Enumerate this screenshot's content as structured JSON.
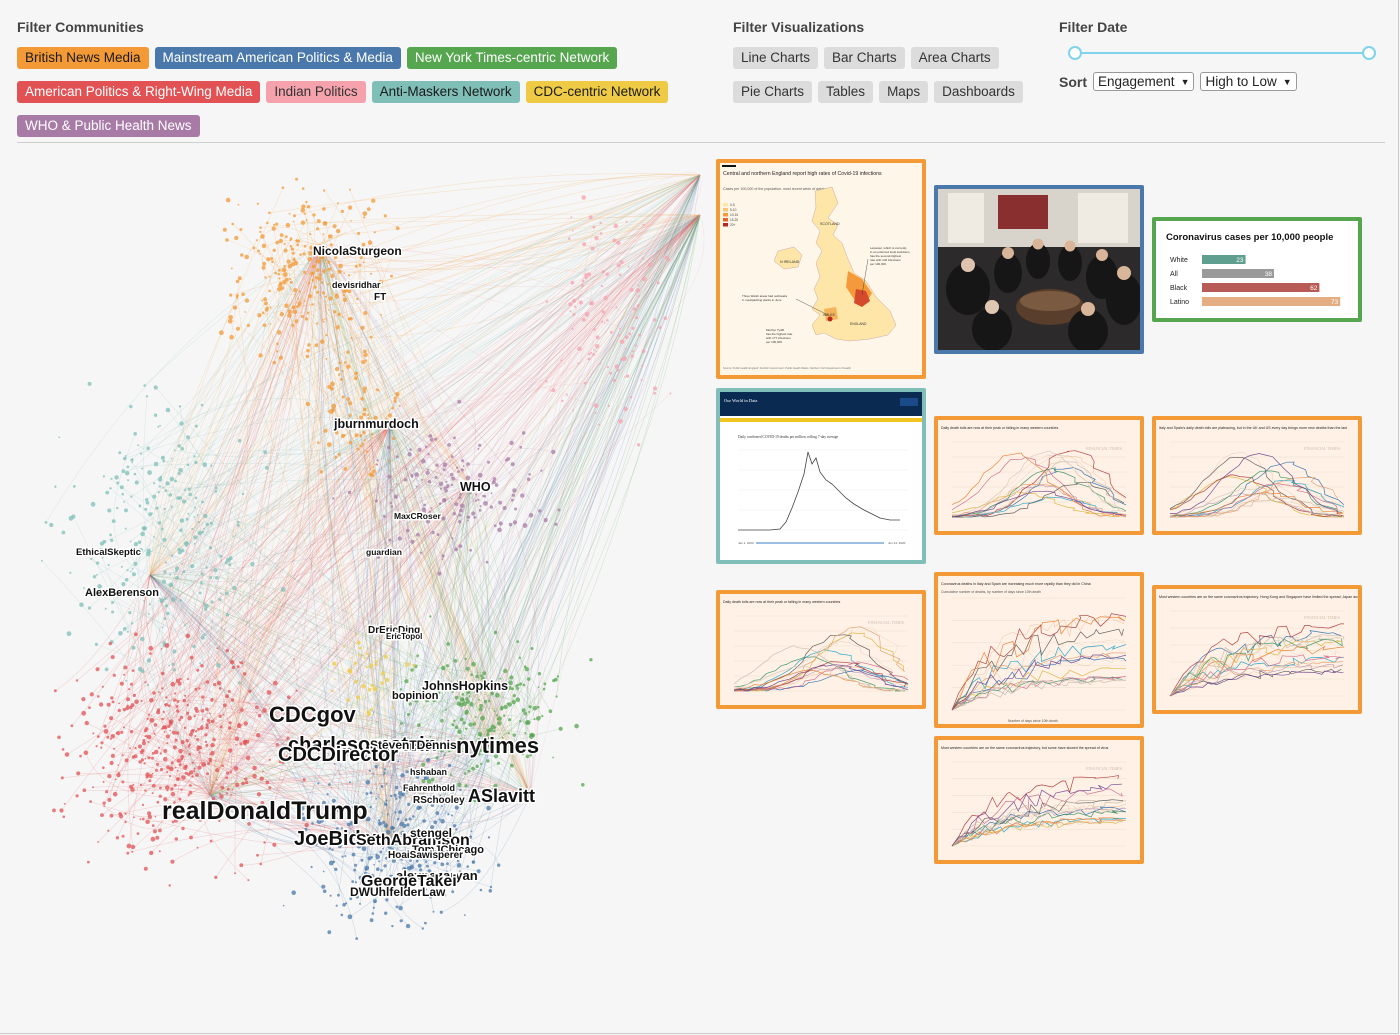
{
  "filters": {
    "communities_title": "Filter Communities",
    "communities": [
      {
        "label": "British News Media",
        "bg": "#f39a36",
        "fg": "#1a1a1a"
      },
      {
        "label": "Mainstream American Politics & Media",
        "bg": "#4a78aa",
        "fg": "#ffffff"
      },
      {
        "label": "New York Times-centric Network",
        "bg": "#56a650",
        "fg": "#ffffff"
      },
      {
        "label": "American Politics & Right-Wing Media",
        "bg": "#e25254",
        "fg": "#ffffff"
      },
      {
        "label": "Indian Politics",
        "bg": "#f5a2ad",
        "fg": "#333333"
      },
      {
        "label": "Anti-Maskers Network",
        "bg": "#7fbfb8",
        "fg": "#1a1a1a"
      },
      {
        "label": "CDC-centric Network",
        "bg": "#efcb45",
        "fg": "#1a1a1a"
      },
      {
        "label": "WHO & Public Health News",
        "bg": "#a87ba7",
        "fg": "#ffffff"
      }
    ],
    "visualizations_title": "Filter Visualizations",
    "visualizations": [
      "Line Charts",
      "Bar Charts",
      "Area Charts",
      "Pie Charts",
      "Tables",
      "Maps",
      "Dashboards"
    ],
    "date_title": "Filter Date",
    "sort_label": "Sort",
    "sort_by": "Engagement",
    "sort_order": "High to Low"
  },
  "network_labels": [
    {
      "text": "NicolaSturgeon"
    },
    {
      "text": "devisridhar"
    },
    {
      "text": "FT"
    },
    {
      "text": "jburnmurdoch"
    },
    {
      "text": "WHO"
    },
    {
      "text": "MaxCRoser"
    },
    {
      "text": "guardian"
    },
    {
      "text": "EthicalSkeptic"
    },
    {
      "text": "AlexBerenson"
    },
    {
      "text": "DrEricDing"
    },
    {
      "text": "EricTopol"
    },
    {
      "text": "JohnsHopkins"
    },
    {
      "text": "bopinion"
    },
    {
      "text": "CDCgov"
    },
    {
      "text": "charlesornstein"
    },
    {
      "text": "StevenTDennis"
    },
    {
      "text": "nytimes"
    },
    {
      "text": "CDCDirector"
    },
    {
      "text": "hshaban"
    },
    {
      "text": "Fahrenthold"
    },
    {
      "text": "RSchooley"
    },
    {
      "text": "ASlavitt"
    },
    {
      "text": "realDonaldTrump"
    },
    {
      "text": "JoeBiden"
    },
    {
      "text": "SethAbramson"
    },
    {
      "text": "stengel"
    },
    {
      "text": "TomJChicago"
    },
    {
      "text": "HoaiSawisperer"
    },
    {
      "text": "alexnazaryan"
    },
    {
      "text": "GeorgeTakei"
    },
    {
      "text": "DWUhlfelderLaw"
    }
  ],
  "thumbnails": {
    "uk_map": {
      "title": "Central and northern England report high rates of Covid-19 infections",
      "subtitle": "Cases per 100,000 of the population, most recent week of data*",
      "legend": [
        "0-5",
        "5-10",
        "10-15",
        "15-20",
        "20+"
      ],
      "places": [
        "SCOTLAND",
        "N IRELAND",
        "WALES",
        "ENGLAND"
      ],
      "note1": "Leicester, which is currently in an enforced local lockdown, has the second-highest rate with 140 infections per 100,000",
      "note2": "Three Welsh areas had outbreaks in meatpacking plants in June",
      "note3": "Merthyr Tydfil has the highest rate with 177 infections per 100,000",
      "source": "Source: Public Health England; Scottish Government; Public Health Wales; Northern Irish Department of Health"
    },
    "bar": {
      "title": "Coronavirus cases per 10,000 people",
      "chart_data": {
        "type": "bar",
        "title": "Coronavirus cases per 10,000 people",
        "categories": [
          "White",
          "All",
          "Black",
          "Latino"
        ],
        "values": [
          23,
          38,
          62,
          73
        ],
        "colors": [
          "#5f9f8f",
          "#9a9a9a",
          "#b85a55",
          "#e4ae82"
        ],
        "xlim": [
          0,
          75
        ]
      }
    },
    "owid": {
      "brand": "Our World in Data",
      "title": "Daily confirmed COVID-19 deaths per million, rolling 7-day average",
      "start": "Jan 1, 2020",
      "end": "Jun 24, 2020"
    },
    "ft1": {
      "title": "Daily death tolls are now at their peak or falling in many western countries",
      "watermark": "FINANCIAL TIMES"
    },
    "ft2": {
      "title": "Italy and Spain's daily death tolls are plateauing, but in the UK and US every day brings more new deaths than the last",
      "watermark": "FINANCIAL TIMES"
    },
    "ft3": {
      "title": "Daily death tolls are now at their peak or falling in many western countries",
      "watermark": "FINANCIAL TIMES"
    },
    "ft4": {
      "title": "Coronavirus deaths in Italy and Spain are increasing much more rapidly than they did in China",
      "subtitle": "Cumulative number of deaths, by number of days since 10th death",
      "xlabel": "Number of days since 10th death"
    },
    "ft5": {
      "title": "Most western countries are on the same coronavirus trajectory. Hong Kong and Singapore have limited the spread; Japan and S Korea have slowed it",
      "watermark": "FINANCIAL TIMES"
    },
    "ft6": {
      "title": "Most western countries are on the same coronavirus trajectory, but some have slowed the spread of virus",
      "watermark": "FINANCIAL TIMES"
    }
  },
  "colors": {
    "orange": "#f39a36",
    "blue": "#4a78aa",
    "green": "#56a650",
    "red": "#e25254",
    "pink": "#f5a2ad",
    "teal": "#7fbfb8",
    "yellow": "#efcb45",
    "purple": "#a87ba7"
  }
}
